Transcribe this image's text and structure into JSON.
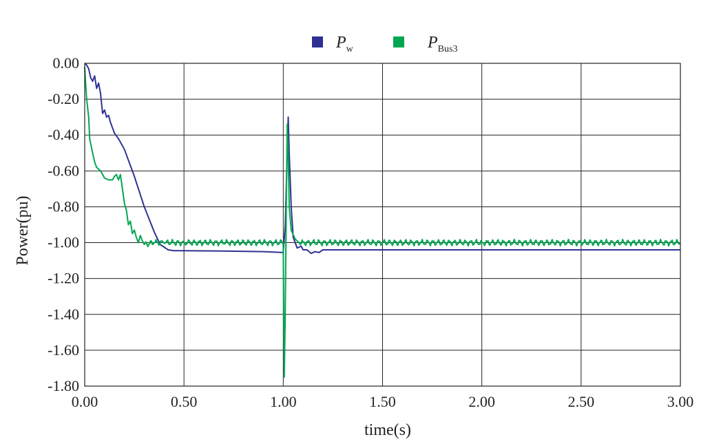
{
  "chart_data": {
    "type": "line",
    "title": "",
    "xlabel": "time(s)",
    "ylabel": "Power(pu)",
    "xlim": [
      0,
      3
    ],
    "ylim": [
      -1.8,
      0
    ],
    "x_ticks": [
      "0.00",
      "0.50",
      "1.00",
      "1.50",
      "2.00",
      "2.50",
      "3.00"
    ],
    "y_ticks": [
      "0.00",
      "-0.20",
      "-0.40",
      "-0.60",
      "-0.80",
      "-1.00",
      "-1.20",
      "-1.40",
      "-1.60",
      "-1.80"
    ],
    "grid": true,
    "legend_position": "top-center",
    "series": [
      {
        "name": "P_w",
        "legend_main": "P",
        "legend_sub": "w",
        "color": "#2e3192",
        "points": [
          [
            0,
            0
          ],
          [
            0.01,
            -0.01
          ],
          [
            0.02,
            -0.03
          ],
          [
            0.03,
            -0.08
          ],
          [
            0.04,
            -0.1
          ],
          [
            0.05,
            -0.07
          ],
          [
            0.06,
            -0.14
          ],
          [
            0.07,
            -0.11
          ],
          [
            0.08,
            -0.17
          ],
          [
            0.09,
            -0.28
          ],
          [
            0.1,
            -0.26
          ],
          [
            0.11,
            -0.3
          ],
          [
            0.12,
            -0.29
          ],
          [
            0.13,
            -0.33
          ],
          [
            0.14,
            -0.36
          ],
          [
            0.15,
            -0.39
          ],
          [
            0.17,
            -0.42
          ],
          [
            0.2,
            -0.48
          ],
          [
            0.25,
            -0.63
          ],
          [
            0.3,
            -0.8
          ],
          [
            0.35,
            -0.94
          ],
          [
            0.38,
            -1.01
          ],
          [
            0.42,
            -1.04
          ],
          [
            0.45,
            -1.045
          ],
          [
            0.5,
            -1.045
          ],
          [
            0.7,
            -1.047
          ],
          [
            0.9,
            -1.05
          ],
          [
            1.0,
            -1.055
          ],
          [
            1.01,
            -0.9
          ],
          [
            1.02,
            -0.5
          ],
          [
            1.025,
            -0.3
          ],
          [
            1.03,
            -0.5
          ],
          [
            1.04,
            -0.8
          ],
          [
            1.05,
            -0.97
          ],
          [
            1.07,
            -1.03
          ],
          [
            1.09,
            -1.02
          ],
          [
            1.1,
            -1.04
          ],
          [
            1.12,
            -1.04
          ],
          [
            1.14,
            -1.06
          ],
          [
            1.16,
            -1.05
          ],
          [
            1.18,
            -1.055
          ],
          [
            1.2,
            -1.04
          ],
          [
            1.5,
            -1.04
          ],
          [
            2.0,
            -1.04
          ],
          [
            2.5,
            -1.04
          ],
          [
            3.0,
            -1.04
          ]
        ]
      },
      {
        "name": "P_Bus3",
        "legend_main": "P",
        "legend_sub": "Bus3",
        "color": "#00a651",
        "points": [
          [
            0,
            -0.02
          ],
          [
            0.005,
            -0.12
          ],
          [
            0.01,
            -0.2
          ],
          [
            0.02,
            -0.3
          ],
          [
            0.025,
            -0.42
          ],
          [
            0.04,
            -0.5
          ],
          [
            0.05,
            -0.55
          ],
          [
            0.06,
            -0.58
          ],
          [
            0.08,
            -0.6
          ],
          [
            0.09,
            -0.62
          ],
          [
            0.1,
            -0.64
          ],
          [
            0.12,
            -0.65
          ],
          [
            0.14,
            -0.65
          ],
          [
            0.15,
            -0.63
          ],
          [
            0.16,
            -0.62
          ],
          [
            0.17,
            -0.65
          ],
          [
            0.18,
            -0.62
          ],
          [
            0.19,
            -0.7
          ],
          [
            0.2,
            -0.78
          ],
          [
            0.21,
            -0.82
          ],
          [
            0.22,
            -0.9
          ],
          [
            0.23,
            -0.88
          ],
          [
            0.24,
            -0.95
          ],
          [
            0.25,
            -0.93
          ],
          [
            0.26,
            -0.97
          ],
          [
            0.27,
            -1.0
          ],
          [
            0.28,
            -0.96
          ],
          [
            0.29,
            -0.99
          ],
          [
            0.3,
            -1.01
          ],
          [
            0.35,
            -1.0
          ],
          [
            0.4,
            -1.0
          ],
          [
            0.5,
            -1.0
          ],
          [
            0.7,
            -1.0
          ],
          [
            0.9,
            -1.0
          ],
          [
            1.0,
            -1.0
          ],
          [
            1.005,
            -1.75
          ],
          [
            1.01,
            -1.4
          ],
          [
            1.015,
            -0.8
          ],
          [
            1.02,
            -0.34
          ],
          [
            1.025,
            -0.5
          ],
          [
            1.03,
            -0.8
          ],
          [
            1.04,
            -0.93
          ],
          [
            1.06,
            -0.98
          ],
          [
            1.08,
            -1.0
          ],
          [
            1.1,
            -1.0
          ],
          [
            1.5,
            -1.0
          ],
          [
            2.0,
            -1.0
          ],
          [
            2.5,
            -1.0
          ],
          [
            3.0,
            -1.0
          ]
        ]
      }
    ]
  }
}
